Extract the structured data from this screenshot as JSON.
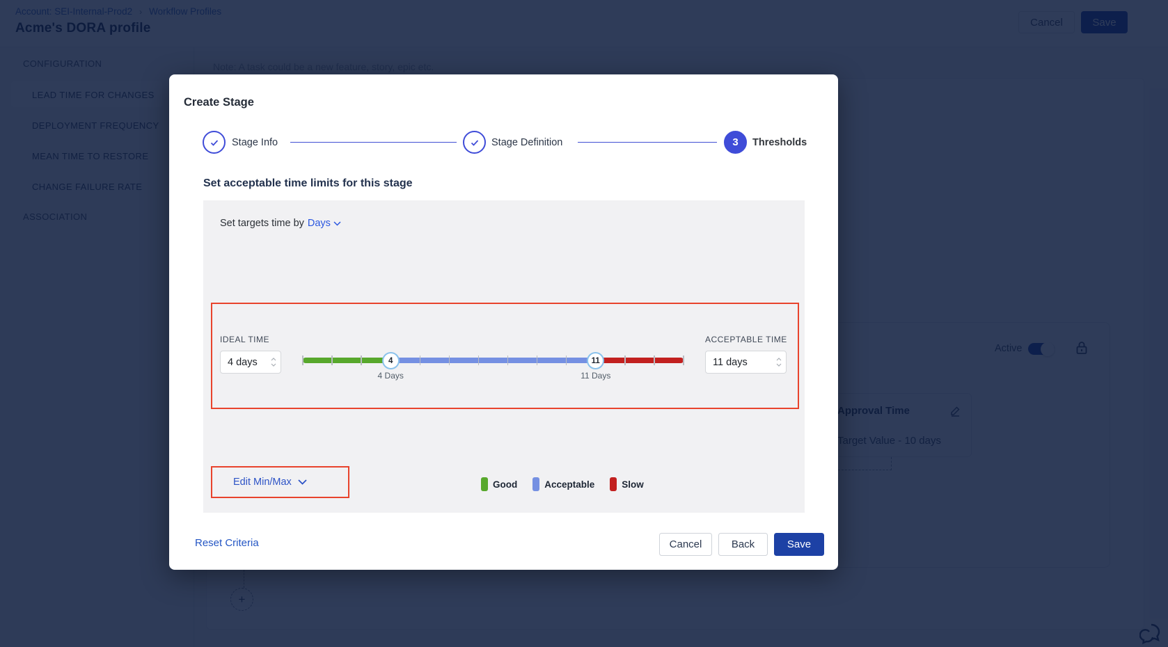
{
  "page": {
    "breadcrumb": {
      "account": "Account: SEI-Internal-Prod2",
      "separator": "›",
      "section": "Workflow Profiles"
    },
    "title": "Acme's DORA profile",
    "header_actions": {
      "cancel": "Cancel",
      "save": "Save"
    },
    "sidebar": {
      "section_configuration": "CONFIGURATION",
      "items": [
        {
          "label": "LEAD TIME FOR CHANGES",
          "selected": true
        },
        {
          "label": "DEPLOYMENT FREQUENCY",
          "selected": false
        },
        {
          "label": "MEAN TIME TO RESTORE",
          "selected": false
        },
        {
          "label": "CHANGE FAILURE RATE",
          "selected": false
        }
      ],
      "section_association": "ASSOCIATION"
    },
    "content": {
      "note": "Note: A task could be a new feature, story, epic etc.",
      "active_label": "Active",
      "stage_card": {
        "title": "Approval Time",
        "subtitle": "Target Value - 10 days"
      },
      "plus_sign": "+"
    }
  },
  "modal": {
    "title": "Create Stage",
    "steps": [
      {
        "label": "Stage Info",
        "state": "done"
      },
      {
        "label": "Stage Definition",
        "state": "done"
      },
      {
        "label": "Thresholds",
        "number": "3",
        "state": "active"
      }
    ],
    "heading": "Set acceptable time limits for this stage",
    "target_time": {
      "prefix": "Set targets time by",
      "unit": "Days"
    },
    "ideal": {
      "label": "IDEAL TIME",
      "value": "4 days"
    },
    "acceptable": {
      "label": "ACCEPTABLE TIME",
      "value": "11 days"
    },
    "slider": {
      "min": 1,
      "max": 14,
      "lower": 4,
      "upper": 11,
      "lower_handle": "4",
      "upper_handle": "11",
      "lower_label": "4 Days",
      "upper_label": "11 Days",
      "colors": {
        "good": "#58a82c",
        "acceptable": "#7590e2",
        "slow": "#c2201f"
      }
    },
    "edit_minmax": "Edit Min/Max",
    "legend": [
      {
        "label": "Good",
        "color": "#58a82c"
      },
      {
        "label": "Acceptable",
        "color": "#7590e2"
      },
      {
        "label": "Slow",
        "color": "#c2201f"
      }
    ],
    "footer": {
      "reset": "Reset Criteria",
      "cancel": "Cancel",
      "back": "Back",
      "save": "Save"
    }
  }
}
